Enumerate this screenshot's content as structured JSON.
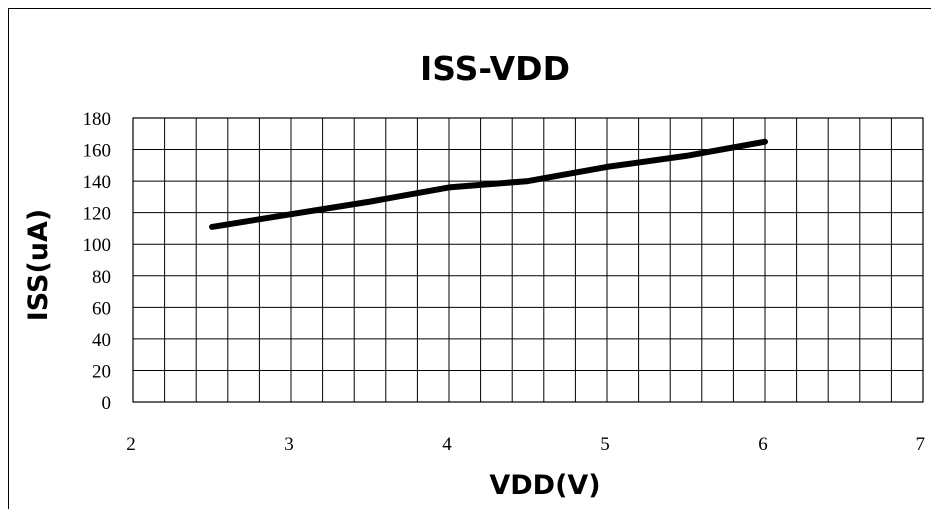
{
  "chart_data": {
    "type": "line",
    "title": "ISS-VDD",
    "xlabel": "VDD(V)",
    "ylabel": "ISS(uA)",
    "xlim": [
      2,
      7
    ],
    "ylim": [
      0,
      180
    ],
    "x_ticks": [
      "2",
      "3",
      "4",
      "5",
      "6",
      "7"
    ],
    "y_ticks": [
      "0",
      "20",
      "40",
      "60",
      "80",
      "100",
      "120",
      "140",
      "160",
      "180"
    ],
    "x_minor_step": 0.2,
    "y_step": 20,
    "grid": true,
    "legend": "none",
    "series": [
      {
        "color": "#000000",
        "x": [
          2.5,
          3.0,
          3.5,
          4.0,
          4.5,
          5.0,
          5.5,
          6.0
        ],
        "y": [
          111,
          119,
          127,
          136,
          140,
          149,
          156,
          165
        ]
      }
    ]
  }
}
